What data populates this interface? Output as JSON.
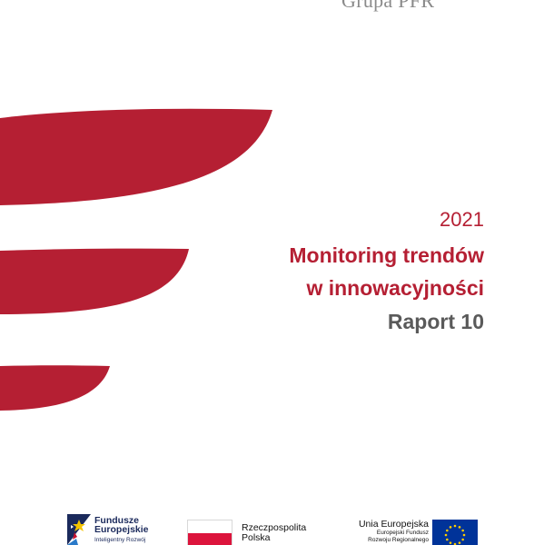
{
  "organization": "Grupa PFR",
  "cover": {
    "year": "2021",
    "title_line1": "Monitoring trendów",
    "title_line2": "w innowacyjności",
    "report_number": "Raport 10"
  },
  "colors": {
    "brand_red": "#b51f33",
    "report_gray": "#5a5a5a",
    "org_gray": "#8a8a8a"
  },
  "logos": {
    "fundusze": {
      "line1": "Fundusze",
      "line2": "Europejskie",
      "sub": "Inteligentny Rozwój",
      "icon": "european-funds-star-icon"
    },
    "rzeczpospolita": {
      "line1": "Rzeczpospolita",
      "line2": "Polska",
      "icon": "polish-flag-icon"
    },
    "unia": {
      "title": "Unia Europejska",
      "sub1": "Europejski Fundusz",
      "sub2": "Rozwoju Regionalnego",
      "icon": "eu-flag-icon"
    }
  }
}
